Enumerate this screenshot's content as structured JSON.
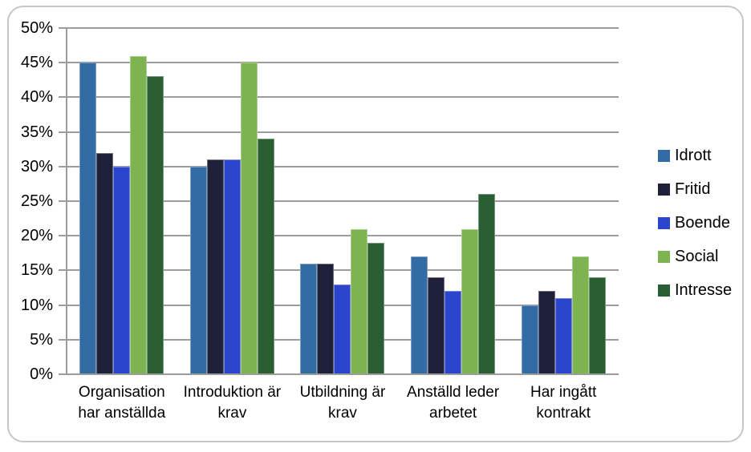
{
  "chart_data": {
    "type": "bar",
    "title": "",
    "xlabel": "",
    "ylabel": "",
    "categories": [
      "Organisation\nhar anställda",
      "Introduktion är\nkrav",
      "Utbildning är\nkrav",
      "Anställd leder\narbetet",
      "Har ingått\nkontrakt"
    ],
    "series": [
      {
        "name": "Idrott",
        "color": "#336CA5",
        "values": [
          45,
          30,
          16,
          17,
          10
        ]
      },
      {
        "name": "Fritid",
        "color": "#1E2139",
        "values": [
          32,
          31,
          16,
          14,
          12
        ]
      },
      {
        "name": "Boende",
        "color": "#2B46CC",
        "values": [
          30,
          31,
          13,
          12,
          11
        ]
      },
      {
        "name": "Social",
        "color": "#7DB351",
        "values": [
          46,
          45,
          21,
          21,
          17
        ]
      },
      {
        "name": "Intresse",
        "color": "#2A5F33",
        "values": [
          43,
          34,
          19,
          26,
          14
        ]
      }
    ],
    "ylim": [
      0,
      50
    ],
    "ytick_step": 5,
    "ytick_labels": [
      "0%",
      "5%",
      "10%",
      "15%",
      "20%",
      "25%",
      "30%",
      "35%",
      "40%",
      "45%",
      "50%"
    ],
    "grid": true,
    "legend_position": "right"
  },
  "style": {
    "grid_color": "#9C9C9C",
    "axis_color": "#9C9C9C",
    "frame_border_color": "#C6C6C6",
    "background": "#FFFFFF",
    "text_color": "#000000"
  }
}
